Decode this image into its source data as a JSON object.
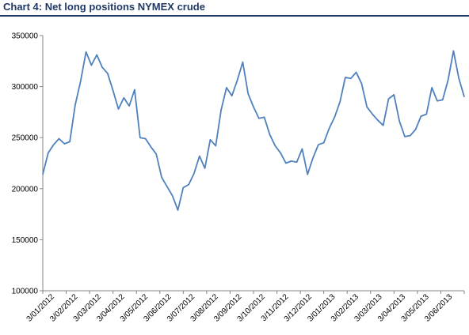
{
  "colors": {
    "title": "#1f3864",
    "series": "#4f81bd",
    "axis": "#868686"
  },
  "chart_data": {
    "type": "line",
    "title": "Chart 4: Net long positions NYMEX crude",
    "xlabel": "",
    "ylabel": "",
    "ylim": [
      100000,
      350000
    ],
    "yticks": [
      100000,
      150000,
      200000,
      250000,
      300000,
      350000
    ],
    "ytick_labels": [
      "100000",
      "150000",
      "200000",
      "250000",
      "300000",
      "350000"
    ],
    "xtick_labels": [
      "3/01/2012",
      "3/02/2012",
      "3/03/2012",
      "3/04/2012",
      "3/05/2012",
      "3/06/2012",
      "3/07/2012",
      "3/08/2012",
      "3/09/2012",
      "3/10/2012",
      "3/11/2012",
      "3/12/2012",
      "3/01/2013",
      "3/02/2013",
      "3/03/2013",
      "3/04/2013",
      "3/05/2013",
      "3/06/2013"
    ],
    "grid": false,
    "legend": "none",
    "series": [
      {
        "values": [
          214000,
          235000,
          243000,
          249000,
          244000,
          246000,
          282000,
          305000,
          334000,
          321000,
          331000,
          319000,
          313000,
          296000,
          278000,
          289000,
          281000,
          297000,
          250000,
          249000,
          241000,
          234000,
          211000,
          202000,
          193000,
          179000,
          201000,
          204000,
          215000,
          232000,
          220000,
          248000,
          242000,
          277000,
          299000,
          291000,
          306000,
          324000,
          293000,
          280000,
          269000,
          270000,
          253000,
          242000,
          235000,
          225000,
          227000,
          226000,
          239000,
          214000,
          230000,
          243000,
          245000,
          259000,
          270000,
          285000,
          309000,
          308000,
          314000,
          303000,
          280000,
          273000,
          267000,
          262000,
          288000,
          292000,
          266000,
          251000,
          252000,
          258000,
          271000,
          273000,
          299000,
          286000,
          287000,
          306000,
          335000,
          308000,
          290000
        ]
      }
    ]
  }
}
